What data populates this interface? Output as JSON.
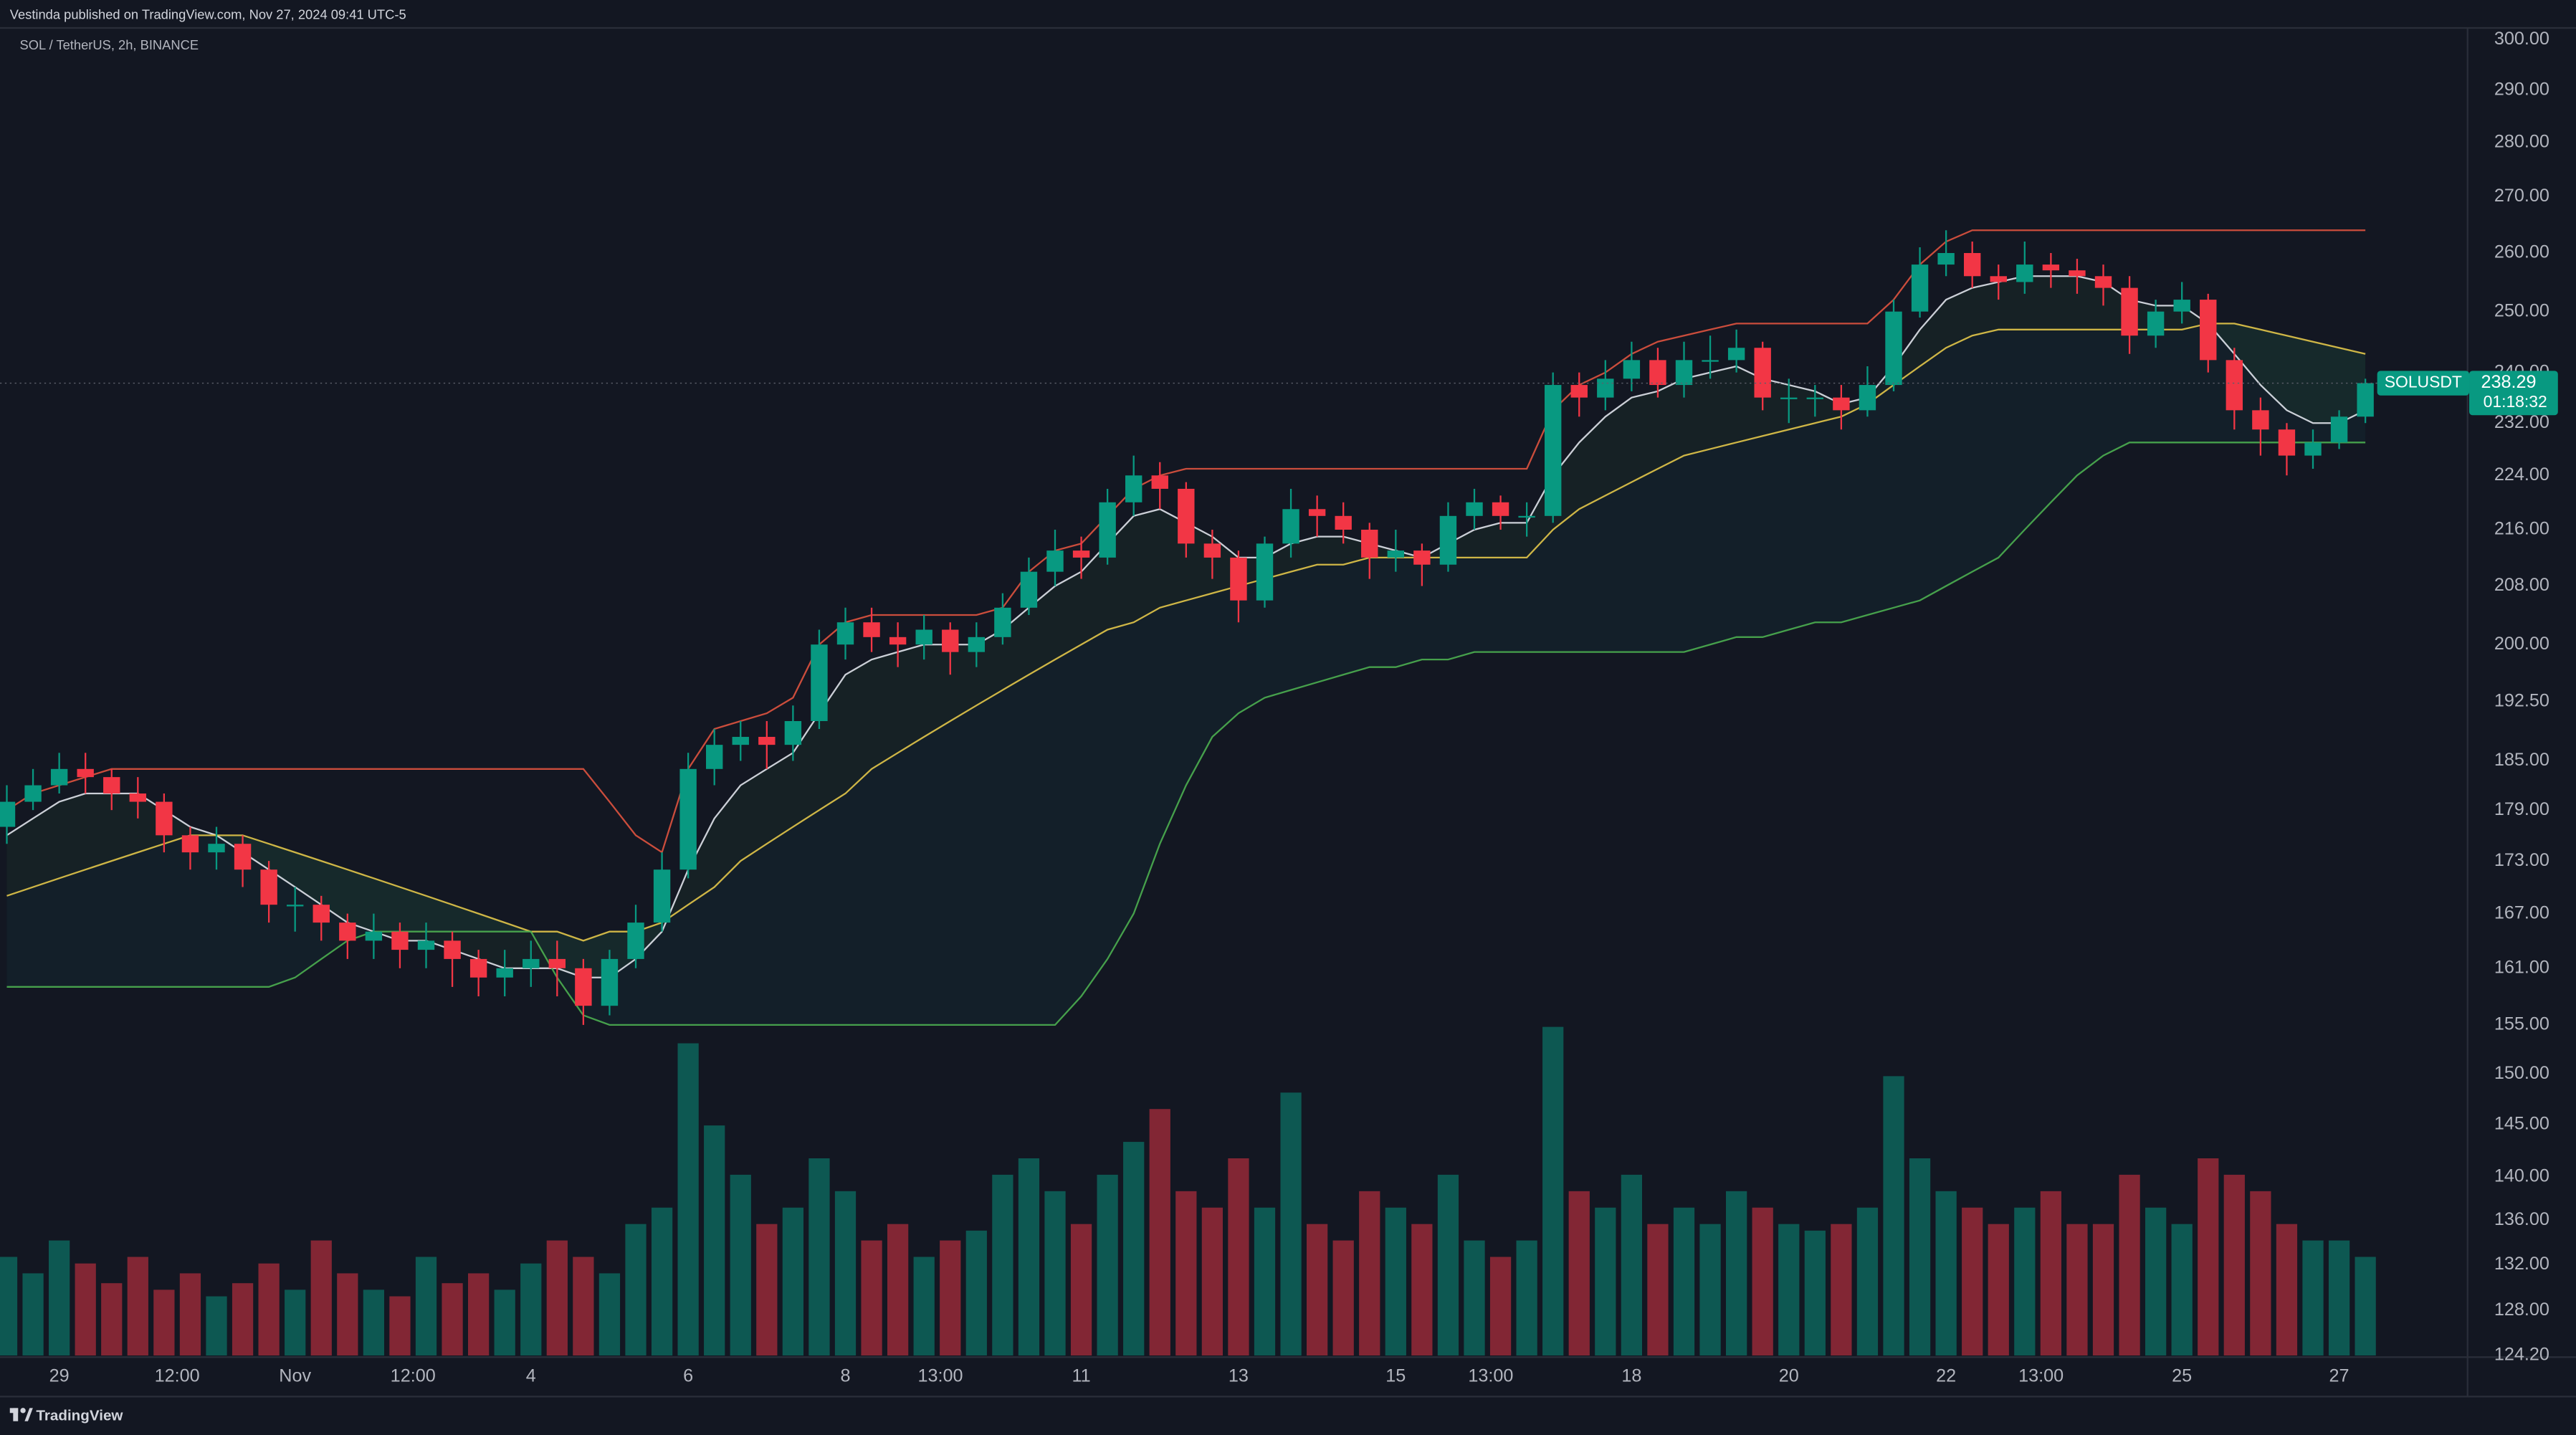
{
  "header": {
    "text": "Vestinda published on TradingView.com, Nov 27, 2024 09:41 UTC-5"
  },
  "footer": {
    "brand": "TradingView"
  },
  "chart_data": {
    "type": "candlestick",
    "title": "SOL / TetherUS, 2h, BINANCE",
    "up_color": "#089981",
    "down_color": "#f23645",
    "log": true,
    "grid": false,
    "ylim": [
      124.2,
      303
    ],
    "yticks": [
      {
        "value": 300,
        "label": "300.00"
      },
      {
        "value": 290,
        "label": "290.00"
      },
      {
        "value": 280,
        "label": "280.00"
      },
      {
        "value": 270,
        "label": "270.00"
      },
      {
        "value": 260,
        "label": "260.00"
      },
      {
        "value": 250,
        "label": "250.00"
      },
      {
        "value": 240,
        "label": "240.00"
      },
      {
        "value": 232,
        "label": "232.00"
      },
      {
        "value": 224,
        "label": "224.00"
      },
      {
        "value": 216,
        "label": "216.00"
      },
      {
        "value": 208,
        "label": "208.00"
      },
      {
        "value": 200,
        "label": "200.00"
      },
      {
        "value": 192.5,
        "label": "192.50"
      },
      {
        "value": 185,
        "label": "185.00"
      },
      {
        "value": 179,
        "label": "179.00"
      },
      {
        "value": 173,
        "label": "173.00"
      },
      {
        "value": 167,
        "label": "167.00"
      },
      {
        "value": 161,
        "label": "161.00"
      },
      {
        "value": 155,
        "label": "155.00"
      },
      {
        "value": 150,
        "label": "150.00"
      },
      {
        "value": 145,
        "label": "145.00"
      },
      {
        "value": 140,
        "label": "140.00"
      },
      {
        "value": 136,
        "label": "136.00"
      },
      {
        "value": 132,
        "label": "132.00"
      },
      {
        "value": 128,
        "label": "128.00"
      },
      {
        "value": 124.2,
        "label": "124.20"
      }
    ],
    "xlim": [
      -0.26,
      93.9
    ],
    "xticks": [
      {
        "value": 2,
        "label": "29"
      },
      {
        "value": 6.5,
        "label": "12:00"
      },
      {
        "value": 11,
        "label": "Nov"
      },
      {
        "value": 15.5,
        "label": "12:00"
      },
      {
        "value": 20,
        "label": "4"
      },
      {
        "value": 26,
        "label": "6"
      },
      {
        "value": 32,
        "label": "8"
      },
      {
        "value": 35.625,
        "label": "13:00"
      },
      {
        "value": 41,
        "label": "11"
      },
      {
        "value": 47,
        "label": "13"
      },
      {
        "value": 53,
        "label": "15"
      },
      {
        "value": 56.625,
        "label": "13:00"
      },
      {
        "value": 62,
        "label": "18"
      },
      {
        "value": 68,
        "label": "20"
      },
      {
        "value": 74,
        "label": "22"
      },
      {
        "value": 77.625,
        "label": "13:00"
      },
      {
        "value": 83,
        "label": "25"
      },
      {
        "value": 89,
        "label": "27"
      }
    ],
    "open": [
      177,
      180,
      182,
      184,
      183,
      181,
      180,
      176,
      174,
      175,
      172,
      168,
      168,
      166,
      164,
      165,
      163,
      164,
      162,
      160,
      161,
      162,
      161,
      157,
      162,
      166,
      172,
      184,
      187,
      188,
      187,
      190,
      200,
      203,
      201,
      200,
      202,
      199,
      201,
      205,
      210,
      213,
      212,
      220,
      224,
      222,
      214,
      212,
      206,
      214,
      219,
      218,
      216,
      212,
      213,
      211,
      218,
      220,
      218,
      218,
      238,
      236,
      239,
      242,
      238,
      242,
      242,
      244,
      236,
      236,
      236,
      234,
      238,
      250,
      258,
      260,
      256,
      255,
      258,
      257,
      256,
      254,
      246,
      250,
      252,
      242,
      234,
      231,
      227,
      229,
      233
    ],
    "high": [
      182,
      184,
      186,
      186,
      184,
      183,
      181,
      177,
      177,
      176,
      173,
      170,
      169,
      167,
      167,
      166,
      166,
      165,
      163,
      163,
      164,
      164,
      162,
      163,
      168,
      174,
      186,
      189,
      190,
      190,
      192,
      202,
      205,
      205,
      203,
      204,
      203,
      203,
      207,
      212,
      216,
      215,
      222,
      227,
      226,
      223,
      216,
      213,
      215,
      222,
      221,
      220,
      217,
      216,
      214,
      220,
      222,
      221,
      220,
      240,
      240,
      242,
      245,
      244,
      245,
      246,
      247,
      245,
      239,
      238,
      238,
      241,
      252,
      261,
      264,
      262,
      258,
      262,
      260,
      259,
      258,
      256,
      252,
      255,
      253,
      244,
      236,
      232,
      231,
      234,
      239
    ],
    "low": [
      175,
      179,
      181,
      181,
      179,
      178,
      174,
      172,
      172,
      170,
      166,
      165,
      164,
      162,
      162,
      161,
      161,
      159,
      158,
      158,
      159,
      158,
      155,
      156,
      161,
      165,
      171,
      182,
      185,
      184,
      185,
      189,
      198,
      199,
      197,
      198,
      196,
      197,
      200,
      204,
      208,
      209,
      211,
      218,
      219,
      212,
      209,
      203,
      205,
      212,
      215,
      214,
      209,
      210,
      208,
      210,
      216,
      216,
      215,
      217,
      233,
      234,
      237,
      236,
      236,
      239,
      240,
      234,
      232,
      233,
      231,
      233,
      237,
      249,
      256,
      254,
      252,
      253,
      254,
      253,
      251,
      243,
      244,
      248,
      240,
      231,
      227,
      224,
      225,
      228,
      232
    ],
    "close": [
      180,
      182,
      184,
      183,
      181,
      180,
      176,
      174,
      175,
      172,
      168,
      168,
      166,
      164,
      165,
      163,
      164,
      162,
      160,
      161,
      162,
      161,
      157,
      162,
      166,
      172,
      184,
      187,
      188,
      187,
      190,
      200,
      203,
      201,
      200,
      202,
      199,
      201,
      205,
      210,
      213,
      212,
      220,
      224,
      222,
      214,
      212,
      206,
      214,
      219,
      218,
      216,
      212,
      213,
      211,
      218,
      220,
      218,
      218,
      238,
      236,
      239,
      242,
      238,
      242,
      242,
      244,
      236,
      236,
      236,
      234,
      238,
      250,
      258,
      260,
      256,
      255,
      258,
      257,
      256,
      254,
      246,
      250,
      252,
      242,
      234,
      231,
      227,
      229,
      233,
      238.29
    ],
    "volume": [
      30,
      25,
      35,
      28,
      22,
      30,
      20,
      25,
      18,
      22,
      28,
      20,
      35,
      25,
      20,
      18,
      30,
      22,
      25,
      20,
      28,
      35,
      30,
      25,
      40,
      45,
      95,
      70,
      55,
      40,
      45,
      60,
      50,
      35,
      40,
      30,
      35,
      38,
      55,
      60,
      50,
      40,
      55,
      65,
      75,
      50,
      45,
      60,
      45,
      80,
      40,
      35,
      50,
      45,
      40,
      55,
      35,
      30,
      35,
      100,
      50,
      45,
      55,
      40,
      45,
      40,
      50,
      45,
      40,
      38,
      40,
      45,
      85,
      60,
      50,
      45,
      40,
      45,
      50,
      40,
      40,
      55,
      45,
      40,
      60,
      55,
      50,
      40,
      35,
      35,
      30
    ],
    "overlays": [
      {
        "color": "#e0e3eb",
        "values": [
          176,
          178,
          180,
          181,
          181,
          181,
          179,
          177,
          176,
          174,
          172,
          170,
          168,
          166,
          165,
          164,
          164,
          163,
          162,
          161,
          161,
          161,
          160,
          160,
          162,
          165,
          172,
          178,
          182,
          184,
          186,
          191,
          196,
          198,
          199,
          200,
          200,
          200,
          202,
          205,
          208,
          210,
          214,
          218,
          219,
          217,
          215,
          212,
          212,
          214,
          215,
          215,
          214,
          213,
          212,
          214,
          216,
          217,
          217,
          224,
          229,
          233,
          236,
          237,
          239,
          240,
          241,
          239,
          238,
          237,
          235,
          236,
          241,
          247,
          252,
          254,
          255,
          256,
          256,
          256,
          255,
          252,
          251,
          251,
          248,
          243,
          238,
          234,
          232,
          232,
          234
        ]
      },
      {
        "color": "#e3c74a",
        "values": [
          169,
          170,
          171,
          172,
          173,
          174,
          175,
          176,
          176,
          176,
          175,
          174,
          173,
          172,
          171,
          170,
          169,
          168,
          167,
          166,
          165,
          165,
          164,
          165,
          165,
          166,
          168,
          170,
          173,
          175,
          177,
          179,
          181,
          184,
          186,
          188,
          190,
          192,
          194,
          196,
          198,
          200,
          202,
          203,
          205,
          206,
          207,
          208,
          209,
          210,
          211,
          211,
          212,
          212,
          212,
          212,
          212,
          212,
          212,
          216,
          219,
          221,
          223,
          225,
          227,
          228,
          229,
          230,
          231,
          232,
          233,
          235,
          238,
          241,
          244,
          246,
          247,
          247,
          247,
          247,
          247,
          247,
          247,
          247,
          248,
          248,
          247,
          246,
          245,
          244,
          243
        ]
      },
      {
        "color": "#e0533f",
        "values": [
          179,
          181,
          182,
          183,
          184,
          184,
          184,
          184,
          184,
          184,
          184,
          184,
          184,
          184,
          184,
          184,
          184,
          184,
          184,
          184,
          184,
          184,
          184,
          180,
          176,
          174,
          184,
          189,
          190,
          191,
          193,
          200,
          203,
          204,
          204,
          204,
          204,
          204,
          205,
          210,
          213,
          214,
          218,
          222,
          224,
          225,
          225,
          225,
          225,
          225,
          225,
          225,
          225,
          225,
          225,
          225,
          225,
          225,
          225,
          234,
          238,
          240,
          243,
          245,
          246,
          247,
          248,
          248,
          248,
          248,
          248,
          248,
          252,
          258,
          262,
          264,
          264,
          264,
          264,
          264,
          264,
          264,
          264,
          264,
          264,
          264,
          264,
          264,
          264,
          264,
          264
        ]
      },
      {
        "color": "#4caf50",
        "values": [
          159,
          159,
          159,
          159,
          159,
          159,
          159,
          159,
          159,
          159,
          159,
          160,
          162,
          164,
          165,
          165,
          165,
          165,
          165,
          165,
          165,
          160,
          156,
          155,
          155,
          155,
          155,
          155,
          155,
          155,
          155,
          155,
          155,
          155,
          155,
          155,
          155,
          155,
          155,
          155,
          155,
          158,
          162,
          167,
          175,
          182,
          188,
          191,
          193,
          194,
          195,
          196,
          197,
          197,
          198,
          198,
          199,
          199,
          199,
          199,
          199,
          199,
          199,
          199,
          199,
          200,
          201,
          201,
          202,
          203,
          203,
          204,
          205,
          206,
          208,
          210,
          212,
          216,
          220,
          224,
          227,
          229,
          229,
          229,
          229,
          229,
          229,
          229,
          229,
          229,
          229
        ]
      }
    ],
    "price_label": {
      "symbol": "SOLUSDT",
      "countdown": "01:18:32"
    }
  }
}
